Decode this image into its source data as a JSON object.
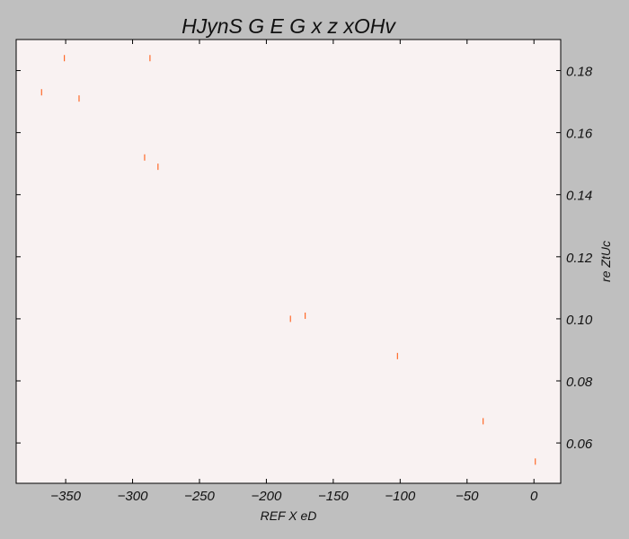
{
  "chart_data": {
    "type": "scatter",
    "title": "HJynS G E G  x z  xOHv",
    "xlabel": "REF X eD",
    "ylabel": "re ZtUc",
    "xlim": [
      -387,
      20
    ],
    "ylim": [
      0.047,
      0.19
    ],
    "xticks": [
      -350,
      -300,
      -250,
      -200,
      -150,
      -100,
      -50,
      0
    ],
    "xtick_labels": [
      "−350",
      "−300",
      "−250",
      "−200",
      "−150",
      "−100",
      "−50",
      "0"
    ],
    "yticks": [
      0.06,
      0.08,
      0.1,
      0.12,
      0.14,
      0.16,
      0.18
    ],
    "ytick_labels": [
      "0.06",
      "0.08",
      "0.10",
      "0.12",
      "0.14",
      "0.16",
      "0.18"
    ],
    "y_axis_side": "right",
    "grid": false,
    "marker": "vertical-line",
    "series": [
      {
        "x": [
          -368,
          -351,
          -340,
          -287,
          -291,
          -281,
          -182,
          -171,
          -102,
          -38,
          1
        ],
        "y": [
          0.173,
          0.184,
          0.171,
          0.184,
          0.152,
          0.149,
          0.1,
          0.101,
          0.088,
          0.067,
          0.054
        ]
      }
    ],
    "colors": {
      "marker": "#ff6a2a",
      "plot_background": "#f9f2f2",
      "figure_background": "#bfbfbf",
      "axes": "#000000"
    }
  }
}
